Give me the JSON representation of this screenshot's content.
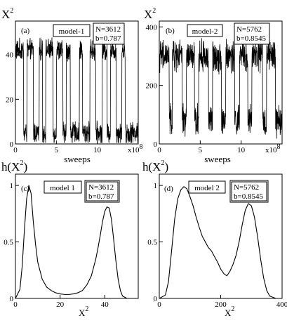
{
  "chart_data": [
    {
      "id": "a",
      "type": "line",
      "panel_label": "(a)",
      "ylabel": "X",
      "ylabel_sup": "2",
      "xlabel": "sweeps",
      "x_multiplier_text": "x10",
      "x_multiplier_sup": "8",
      "xlim": [
        0,
        15
      ],
      "ylim": [
        0,
        55
      ],
      "xticks": [
        0,
        5,
        10
      ],
      "yticks": [
        0,
        20,
        40
      ],
      "legend_box": "model-1",
      "params": [
        "N=3612",
        "b=0.787"
      ],
      "series": [
        {
          "style": "time-series",
          "levels": [
            42,
            5
          ],
          "noise": 4,
          "segments": [
            [
              0.0,
              1.0,
              0
            ],
            [
              1.0,
              1.4,
              1
            ],
            [
              1.4,
              2.2,
              0
            ],
            [
              2.2,
              2.9,
              1
            ],
            [
              2.9,
              3.3,
              0
            ],
            [
              3.3,
              3.7,
              1
            ],
            [
              3.7,
              4.6,
              0
            ],
            [
              4.6,
              5.0,
              1
            ],
            [
              5.0,
              5.8,
              0
            ],
            [
              5.8,
              6.2,
              1
            ],
            [
              6.2,
              6.7,
              0
            ],
            [
              6.7,
              7.8,
              1
            ],
            [
              7.8,
              8.2,
              0
            ],
            [
              8.2,
              9.1,
              1
            ],
            [
              9.1,
              9.8,
              0
            ],
            [
              9.8,
              10.6,
              1
            ],
            [
              10.6,
              11.2,
              0
            ],
            [
              11.2,
              11.6,
              1
            ],
            [
              11.6,
              12.3,
              0
            ],
            [
              12.3,
              13.0,
              1
            ],
            [
              13.0,
              13.4,
              0
            ],
            [
              13.4,
              15.0,
              1
            ]
          ]
        }
      ]
    },
    {
      "id": "b",
      "type": "line",
      "panel_label": "(b)",
      "ylabel": "X",
      "ylabel_sup": "2",
      "xlabel": "sweeps",
      "x_multiplier_text": "x10",
      "x_multiplier_sup": "8",
      "xlim": [
        0,
        15
      ],
      "ylim": [
        0,
        420
      ],
      "xticks": [
        0,
        5,
        10
      ],
      "yticks": [
        0,
        200,
        400
      ],
      "legend_box": "model-2",
      "params": [
        "N=5762",
        "b=0.8545"
      ],
      "series": [
        {
          "style": "time-series",
          "levels": [
            300,
            80
          ],
          "noise": 45,
          "segments": [
            [
              0.0,
              1.2,
              0
            ],
            [
              1.2,
              1.6,
              1
            ],
            [
              1.6,
              2.8,
              0
            ],
            [
              2.8,
              3.3,
              1
            ],
            [
              3.3,
              4.3,
              0
            ],
            [
              4.3,
              4.8,
              1
            ],
            [
              4.8,
              6.0,
              0
            ],
            [
              6.0,
              6.5,
              1
            ],
            [
              6.5,
              7.6,
              0
            ],
            [
              7.6,
              8.1,
              1
            ],
            [
              8.1,
              9.2,
              0
            ],
            [
              9.2,
              9.8,
              1
            ],
            [
              9.8,
              10.8,
              0
            ],
            [
              10.8,
              11.3,
              1
            ],
            [
              11.3,
              12.6,
              0
            ],
            [
              12.6,
              13.1,
              1
            ],
            [
              13.1,
              14.2,
              0
            ],
            [
              14.2,
              15.0,
              1
            ]
          ]
        }
      ]
    },
    {
      "id": "c",
      "type": "line",
      "panel_label": "(c)",
      "ylabel": "h(X",
      "ylabel_sup": "2",
      "ylabel_close": ")",
      "xlabel": "X",
      "xlabel_sup": "2",
      "xlim": [
        0,
        55
      ],
      "ylim": [
        0,
        1.1
      ],
      "xticks": [
        0,
        20,
        40
      ],
      "yticks": [
        0,
        0.5,
        1
      ],
      "ytick_labels": [
        "0",
        "0.5",
        "1"
      ],
      "legend_box": "model 1",
      "params": [
        "N=3612",
        "b=0.787"
      ],
      "series": [
        {
          "x": [
            0,
            2,
            3,
            4,
            5,
            6,
            7,
            8,
            9,
            10,
            12,
            14,
            16,
            18,
            20,
            22,
            24,
            26,
            28,
            30,
            32,
            34,
            36,
            37,
            38,
            39,
            40,
            41,
            42,
            43,
            44,
            45,
            46,
            47,
            48,
            50
          ],
          "y": [
            0,
            0.08,
            0.28,
            0.6,
            0.88,
            1.0,
            0.93,
            0.68,
            0.48,
            0.32,
            0.17,
            0.1,
            0.07,
            0.05,
            0.04,
            0.035,
            0.035,
            0.04,
            0.05,
            0.07,
            0.12,
            0.2,
            0.35,
            0.45,
            0.56,
            0.68,
            0.77,
            0.81,
            0.8,
            0.7,
            0.52,
            0.33,
            0.17,
            0.07,
            0.02,
            0.0
          ]
        }
      ]
    },
    {
      "id": "d",
      "type": "line",
      "panel_label": "(d)",
      "ylabel": "h(X",
      "ylabel_sup": "2",
      "ylabel_close": ")",
      "xlabel": "X",
      "xlabel_sup": "2",
      "xlim": [
        0,
        400
      ],
      "ylim": [
        0,
        1.1
      ],
      "xticks": [
        0,
        200,
        400
      ],
      "yticks": [
        0,
        0.5,
        1
      ],
      "ytick_labels": [
        "0",
        "0.5",
        "1"
      ],
      "legend_box": "model 2",
      "params": [
        "N=5762",
        "b=0.8545"
      ],
      "series": [
        {
          "x": [
            0,
            20,
            30,
            40,
            50,
            60,
            70,
            80,
            90,
            100,
            110,
            120,
            130,
            140,
            150,
            160,
            170,
            180,
            190,
            200,
            210,
            220,
            230,
            240,
            250,
            260,
            270,
            280,
            290,
            300,
            310,
            320,
            330,
            340,
            350,
            360,
            380
          ],
          "y": [
            0,
            0.03,
            0.15,
            0.42,
            0.7,
            0.88,
            0.96,
            0.99,
            0.97,
            0.9,
            0.82,
            0.72,
            0.63,
            0.55,
            0.5,
            0.45,
            0.42,
            0.37,
            0.32,
            0.26,
            0.22,
            0.2,
            0.24,
            0.3,
            0.38,
            0.5,
            0.65,
            0.78,
            0.84,
            0.82,
            0.72,
            0.55,
            0.35,
            0.18,
            0.07,
            0.02,
            0.0
          ]
        }
      ]
    }
  ]
}
